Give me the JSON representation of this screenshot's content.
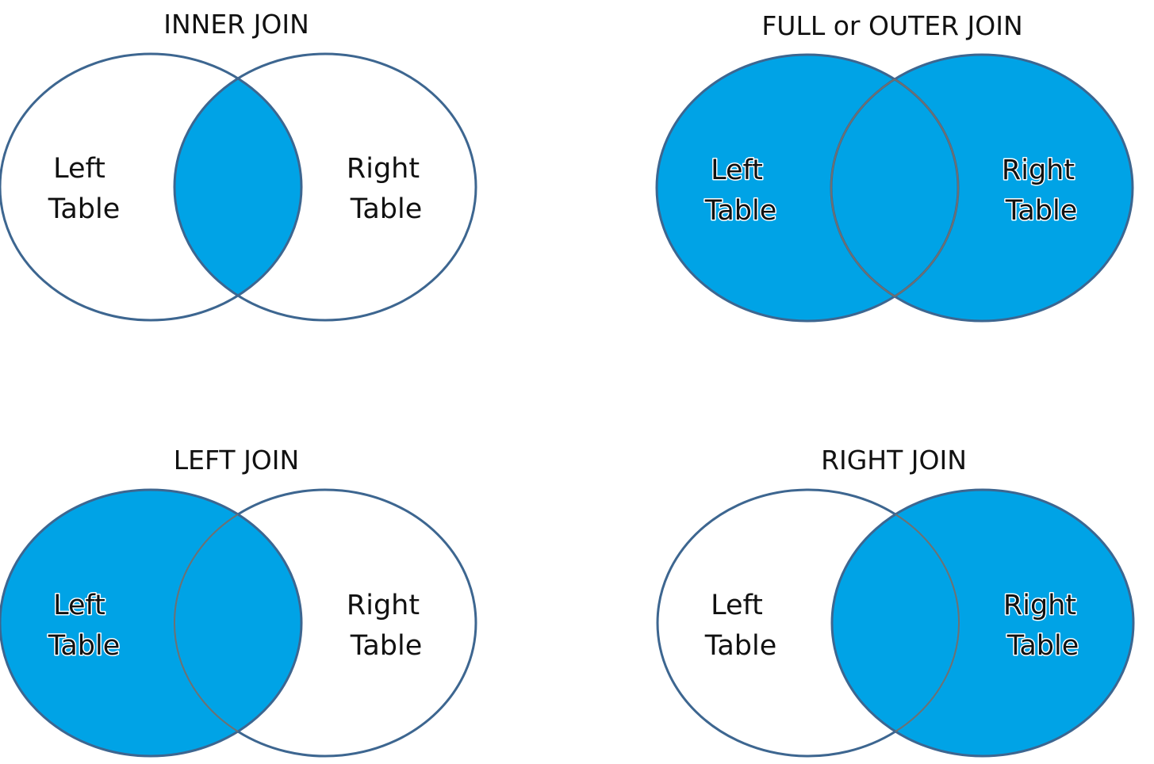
{
  "colors": {
    "fill": "#00a3e6",
    "stroke": "#3d6690",
    "overlap_stroke": "#707070",
    "background": "#ffffff"
  },
  "panels": [
    {
      "title": "INNER JOIN",
      "shaded": "intersection",
      "left_label": [
        "Left",
        "Table"
      ],
      "right_label": [
        "Right",
        "Table"
      ]
    },
    {
      "title": "FULL or OUTER JOIN",
      "shaded": "union",
      "left_label": [
        "Left",
        "Table"
      ],
      "right_label": [
        "Right",
        "Table"
      ]
    },
    {
      "title": "LEFT JOIN",
      "shaded": "left",
      "left_label": [
        "Left",
        "Table"
      ],
      "right_label": [
        "Right",
        "Table"
      ]
    },
    {
      "title": "RIGHT JOIN",
      "shaded": "right",
      "left_label": [
        "Left",
        "Table"
      ],
      "right_label": [
        "Right",
        "Table"
      ]
    }
  ]
}
